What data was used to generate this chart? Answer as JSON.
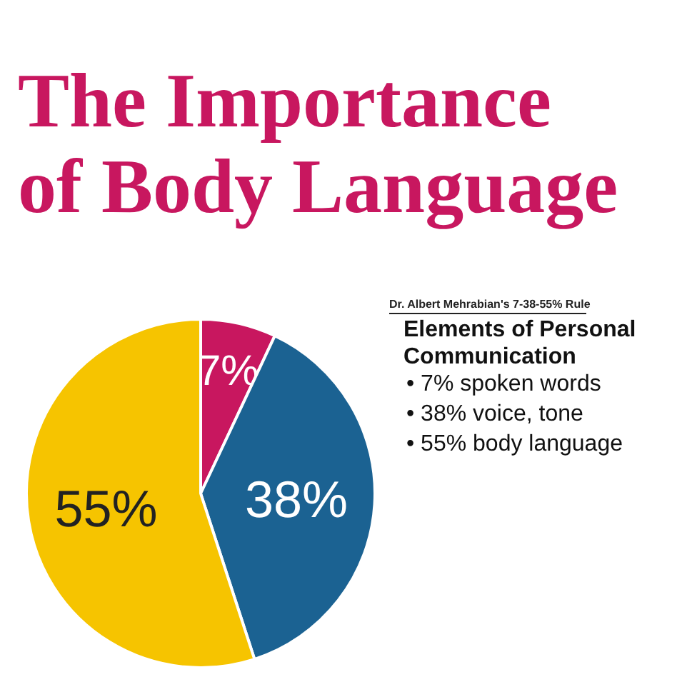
{
  "chart_data": {
    "type": "pie",
    "title": "The Importance of Body Language",
    "categories": [
      null,
      null,
      null
    ],
    "values": [
      7,
      38,
      55
    ],
    "colors": [
      "#c8175f",
      "#1b6292",
      "#f6c400"
    ],
    "value_labels": [
      "7%",
      "38%",
      "55%"
    ],
    "annotations": [
      "Dr. Albert Mehrabian's 7-38-55% Rule",
      "Elements of Personal Communication",
      "• 7% spoken words",
      "• 38% voice, tone",
      "• 55% body language"
    ]
  }
}
